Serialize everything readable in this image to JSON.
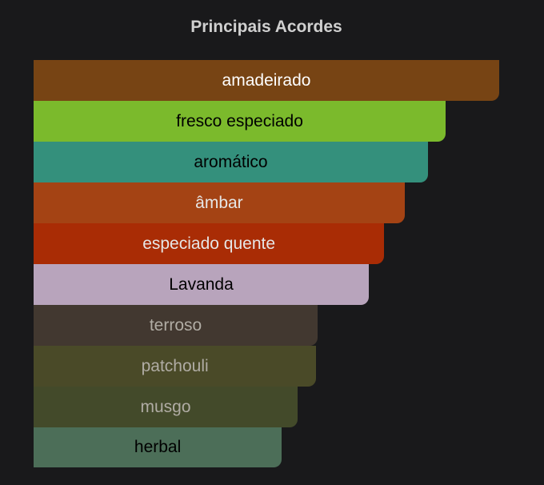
{
  "title": "Principais Acordes",
  "accords": [
    {
      "label": "amadeirado",
      "percent": 100,
      "color": "#774414",
      "text_color": "#ffffff"
    },
    {
      "label": "fresco especiado",
      "percent": 88.5,
      "color": "#7bba2c",
      "text_color": "#000000"
    },
    {
      "label": "aromático",
      "percent": 84.7,
      "color": "#34907c",
      "text_color": "#000000"
    },
    {
      "label": "âmbar",
      "percent": 79.7,
      "color": "#a44314",
      "text_color": "#e6e6e6"
    },
    {
      "label": "especiado quente",
      "percent": 75.3,
      "color": "#a92c05",
      "text_color": "#e6e6e6"
    },
    {
      "label": "Lavanda",
      "percent": 72,
      "color": "#b8a4bc",
      "text_color": "#000000"
    },
    {
      "label": "terroso",
      "percent": 61,
      "color": "#423830",
      "text_color": "#b0aca4"
    },
    {
      "label": "patchouli",
      "percent": 60.7,
      "color": "#4a4a28",
      "text_color": "#b0aca4"
    },
    {
      "label": "musgo",
      "percent": 56.7,
      "color": "#434a2a",
      "text_color": "#b0aca4"
    },
    {
      "label": "herbal",
      "percent": 53.3,
      "color": "#4c6e58",
      "text_color": "#000000"
    }
  ]
}
